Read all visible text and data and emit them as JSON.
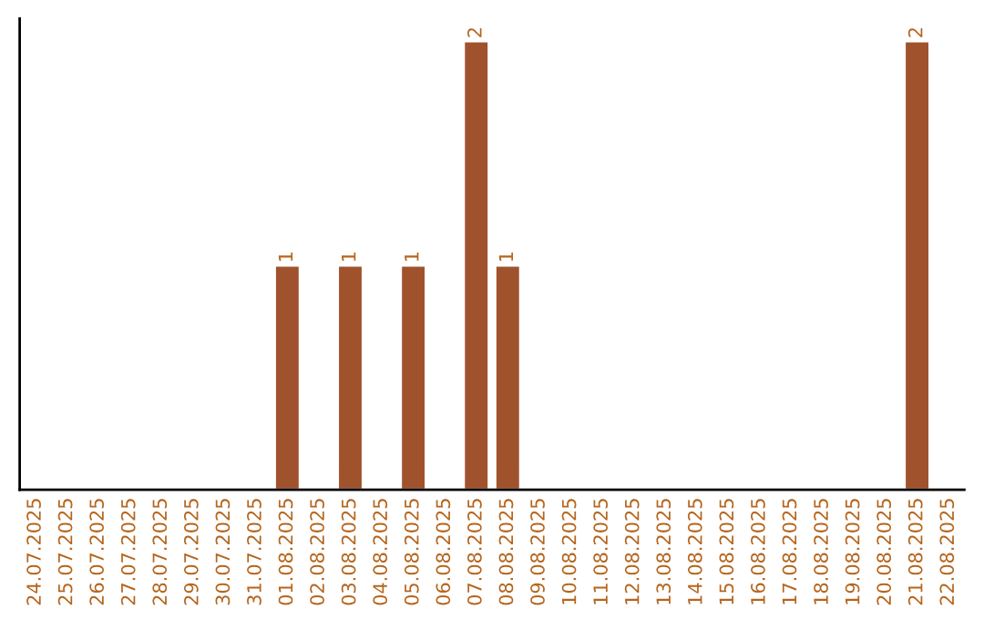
{
  "chart_data": {
    "type": "bar",
    "categories": [
      "24.07.2025",
      "25.07.2025",
      "26.07.2025",
      "27.07.2025",
      "28.07.2025",
      "29.07.2025",
      "30.07.2025",
      "31.07.2025",
      "01.08.2025",
      "02.08.2025",
      "03.08.2025",
      "04.08.2025",
      "05.08.2025",
      "06.08.2025",
      "07.08.2025",
      "08.08.2025",
      "09.08.2025",
      "10.08.2025",
      "11.08.2025",
      "12.08.2025",
      "13.08.2025",
      "14.08.2025",
      "15.08.2025",
      "16.08.2025",
      "17.08.2025",
      "18.08.2025",
      "19.08.2025",
      "20.08.2025",
      "21.08.2025",
      "22.08.2025"
    ],
    "values": [
      null,
      null,
      null,
      null,
      null,
      null,
      null,
      null,
      1,
      null,
      1,
      null,
      1,
      null,
      2,
      1,
      null,
      null,
      null,
      null,
      null,
      null,
      null,
      null,
      null,
      null,
      null,
      null,
      2,
      null
    ],
    "color": "#a0522d",
    "data_labels": true,
    "grid": false
  }
}
